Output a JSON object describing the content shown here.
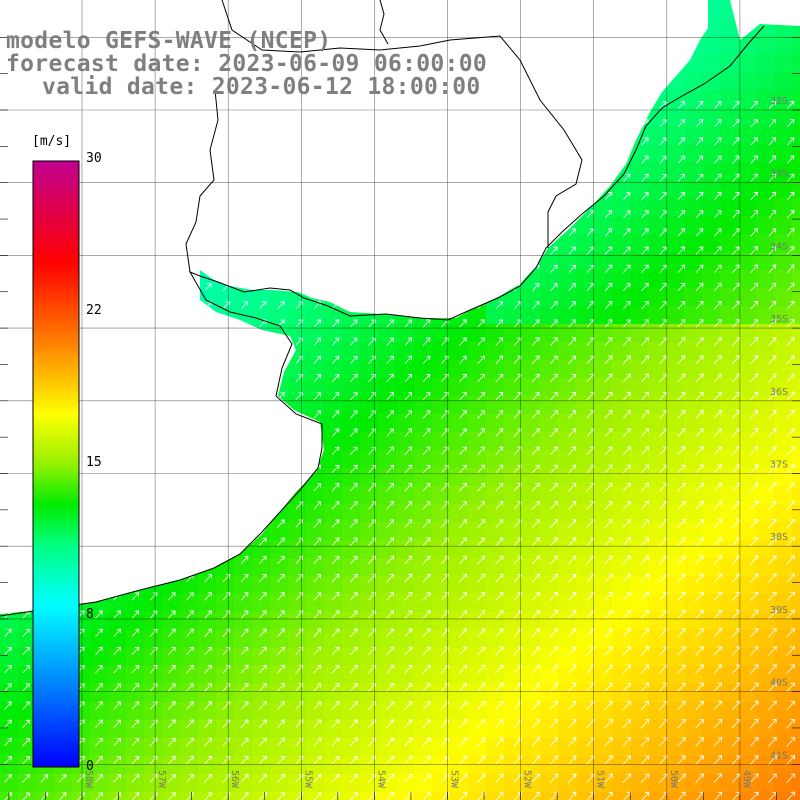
{
  "title": {
    "line1": "modelo GEFS-WAVE (NCEP)",
    "line2": "forecast date: 2023-06-09 06:00:00",
    "line3": "valid date: 2023-06-12 18:00:00"
  },
  "colorbar": {
    "unit": "[m/s]",
    "min": 0,
    "max": 30,
    "ticks": [
      "30",
      "22",
      "15",
      "8",
      "0"
    ],
    "tick_values": [
      30,
      22,
      15,
      8,
      0
    ],
    "gradient": [
      "#0000ff",
      "#0080ff",
      "#00ffff",
      "#00ff80",
      "#00ff00",
      "#80ff00",
      "#ffff00",
      "#ff8000",
      "#ff0000",
      "#c00090"
    ]
  },
  "map": {
    "lat_range": [
      41.3,
      30.7
    ],
    "lon_range": [
      59.1,
      48.6
    ],
    "lat_labels": [
      "32S",
      "33S",
      "34S",
      "35S",
      "36S",
      "37S",
      "38S",
      "39S",
      "40S",
      "41S"
    ],
    "lat_values": [
      32,
      33,
      34,
      35,
      36,
      37,
      38,
      39,
      40,
      41
    ],
    "lon_labels": [
      "58W",
      "57W",
      "56W",
      "55W",
      "54W",
      "53W",
      "52W",
      "51W",
      "50W",
      "49W"
    ],
    "lon_values": [
      58,
      57,
      56,
      55,
      54,
      53,
      52,
      51,
      50,
      49
    ],
    "land_color": "#ffffff",
    "grid_color": "#000000",
    "arrow_color": "#ffffff",
    "field_description": "wind speed magnitude with direction arrows toward northeast"
  }
}
